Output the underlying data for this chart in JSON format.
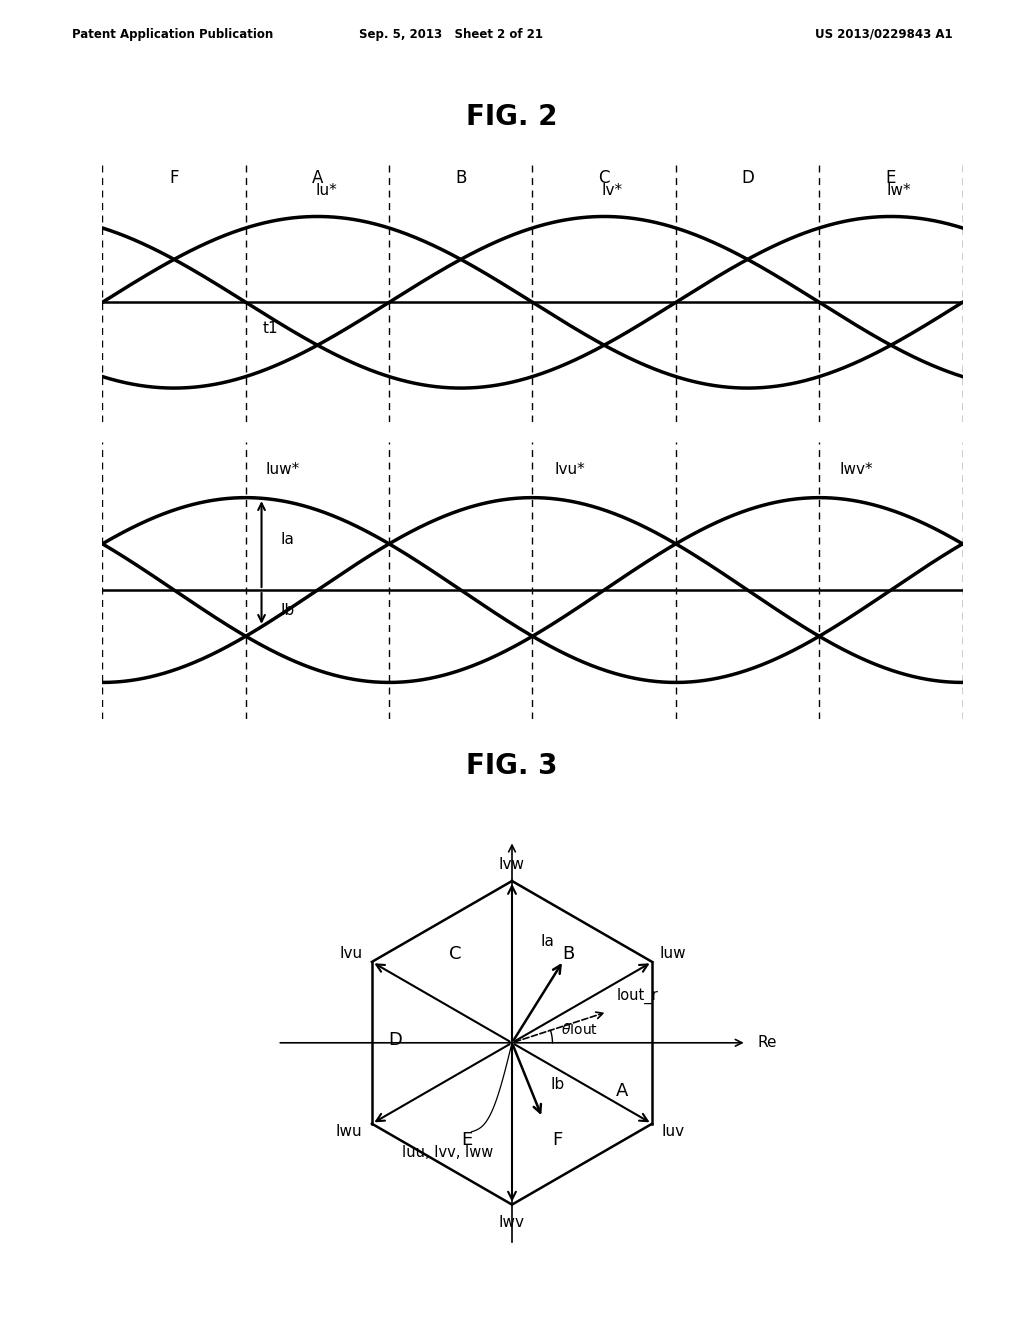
{
  "fig2_title": "FIG. 2",
  "fig3_title": "FIG. 3",
  "header_left": "Patent Application Publication",
  "header_mid": "Sep. 5, 2013   Sheet 2 of 21",
  "header_right": "US 2013/0229843 A1",
  "section_labels": [
    "F",
    "A",
    "B",
    "C",
    "D",
    "E"
  ],
  "background_color": "#ffffff",
  "lw_signal": 2.5,
  "lw_axis": 1.8,
  "lw_dashed": 1.0
}
